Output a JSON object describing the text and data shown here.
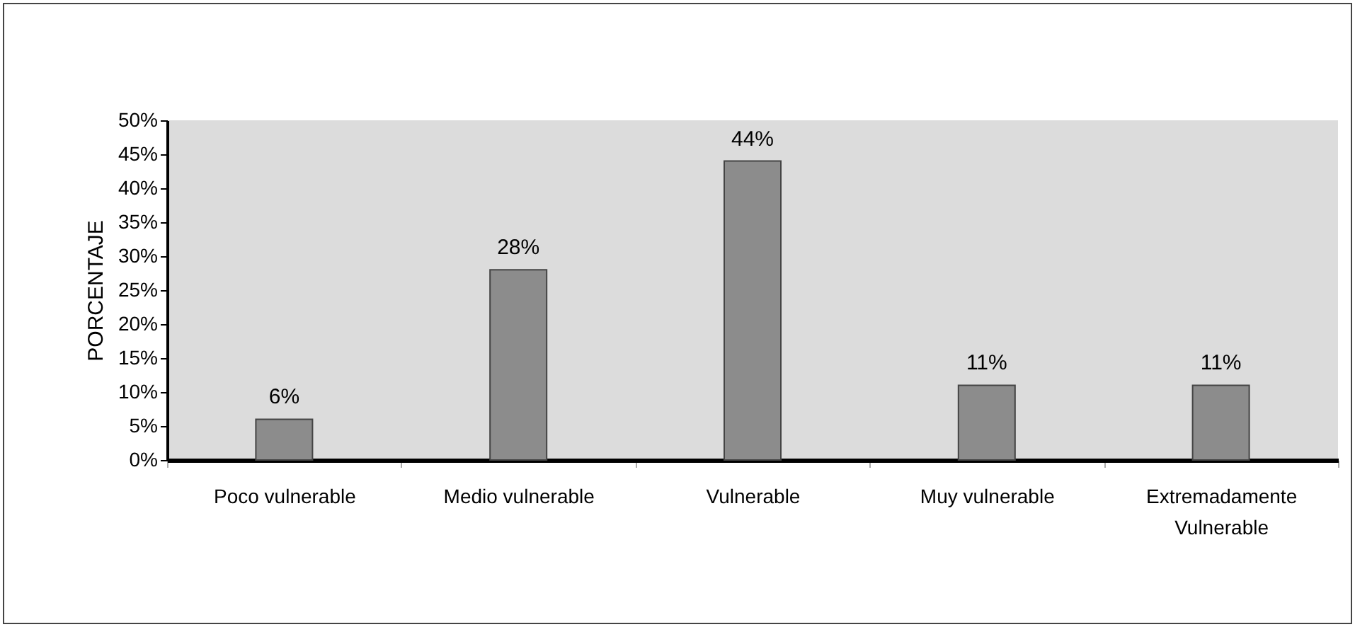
{
  "chart_data": {
    "type": "bar",
    "categories": [
      "Poco vulnerable",
      "Medio vulnerable",
      "Vulnerable",
      "Muy vulnerable",
      "Extremadamente Vulnerable"
    ],
    "values": [
      6,
      28,
      44,
      11,
      11
    ],
    "value_labels": [
      "6%",
      "28%",
      "44%",
      "11%",
      "11%"
    ],
    "color": "#8c8c8c",
    "ylabel": "PORCENTAJE",
    "ylim": [
      0,
      50
    ],
    "yticks": [
      {
        "value": 0,
        "label": "0%"
      },
      {
        "value": 5,
        "label": "5%"
      },
      {
        "value": 10,
        "label": "10%"
      },
      {
        "value": 15,
        "label": "15%"
      },
      {
        "value": 20,
        "label": "20%"
      },
      {
        "value": 25,
        "label": "25%"
      },
      {
        "value": 30,
        "label": "30%"
      },
      {
        "value": 35,
        "label": "35%"
      },
      {
        "value": 40,
        "label": "40%"
      },
      {
        "value": 45,
        "label": "45%"
      },
      {
        "value": 50,
        "label": "50%"
      }
    ],
    "grid": false
  }
}
